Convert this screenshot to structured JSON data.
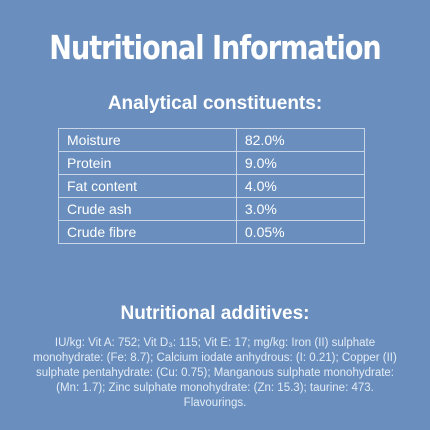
{
  "title": "Nutritional Information",
  "analytical": {
    "heading": "Analytical constituents:",
    "rows": [
      {
        "name": "Moisture",
        "value": "82.0%"
      },
      {
        "name": "Protein",
        "value": "9.0%"
      },
      {
        "name": "Fat content",
        "value": "4.0%"
      },
      {
        "name": "Crude ash",
        "value": "3.0%"
      },
      {
        "name": "Crude fibre",
        "value": "0.05%"
      }
    ]
  },
  "additives": {
    "heading": "Nutritional additives:",
    "text": "IU/kg: Vit A: 752; Vit D₃: 115; Vit E: 17; mg/kg: Iron (II) sulphate monohydrate: (Fe: 8.7); Calcium iodate anhydrous: (I: 0.21); Copper (II) sulphate pentahydrate: (Cu: 0.75); Manganous sulphate monohydrate: (Mn: 1.7); Zinc sulphate monohydrate: (Zn: 15.3); taurine: 473. Flavourings."
  }
}
